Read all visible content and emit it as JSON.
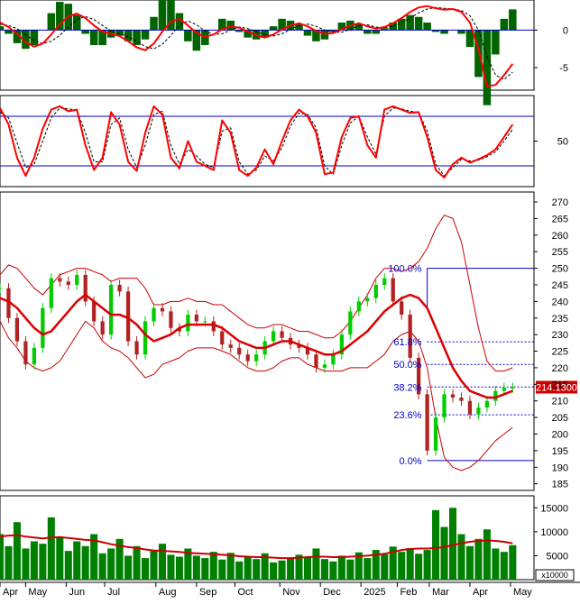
{
  "chart_data": [
    {
      "type": "line",
      "panel": "macd",
      "series": [],
      "y_ticks": [
        0,
        -5
      ],
      "ylim": [
        -8,
        4
      ],
      "histogram_color": "#006400",
      "colors": {
        "macd": "#ff0000",
        "signal": "#000000",
        "zero": "#0000cc"
      },
      "x": [
        0,
        4,
        8,
        12,
        16,
        20,
        24,
        28,
        32,
        36,
        40,
        44,
        48,
        52,
        56,
        60,
        64,
        68,
        72,
        76,
        80,
        84,
        88,
        92,
        96,
        100,
        104,
        108,
        112,
        116,
        120,
        124,
        128,
        132,
        136,
        140,
        144,
        148,
        152,
        156,
        160,
        164,
        168,
        172,
        176,
        180,
        184,
        188,
        192,
        196,
        200,
        204,
        208,
        212,
        216,
        220,
        224,
        228,
        232,
        236,
        240
      ],
      "macd": [
        1.0,
        0.4,
        -0.5,
        -1.6,
        -2.2,
        -1.8,
        -0.6,
        0.8,
        1.8,
        2.2,
        1.6,
        0.6,
        -0.2,
        -0.5,
        -0.8,
        -1.5,
        -2.3,
        -2.7,
        -1.8,
        -0.2,
        1.1,
        1.5,
        0.6,
        -0.4,
        -0.9,
        -0.6,
        0.1,
        0.5,
        0.3,
        -0.2,
        -0.7,
        -1.0,
        -0.6,
        0.1,
        0.6,
        0.9,
        0.5,
        -0.1,
        -0.5,
        -0.4,
        0.1,
        0.6,
        0.9,
        0.5,
        0.2,
        0.4,
        0.9,
        1.6,
        2.4,
        3.0,
        3.2,
        2.9,
        2.7,
        2.8,
        2.4,
        1.0,
        -2.5,
        -7.5,
        -7.3,
        -6.0,
        -4.5
      ],
      "signal": [
        0.8,
        0.6,
        0.2,
        -0.6,
        -1.4,
        -1.8,
        -1.5,
        -0.7,
        0.4,
        1.4,
        1.8,
        1.4,
        0.6,
        -0.1,
        -0.5,
        -0.9,
        -1.5,
        -2.2,
        -2.5,
        -1.9,
        -0.7,
        0.6,
        1.2,
        0.7,
        -0.1,
        -0.6,
        -0.5,
        0.0,
        0.4,
        0.2,
        -0.2,
        -0.6,
        -0.8,
        -0.5,
        0.1,
        0.6,
        0.8,
        0.5,
        0.0,
        -0.3,
        -0.3,
        0.1,
        0.6,
        0.7,
        0.4,
        0.3,
        0.5,
        1.0,
        1.6,
        2.3,
        2.8,
        3.0,
        2.9,
        2.8,
        2.6,
        1.9,
        0.0,
        -3.5,
        -6.0,
        -6.6,
        -5.6
      ]
    },
    {
      "type": "line",
      "panel": "stochastic",
      "series": [],
      "y_ticks": [
        50
      ],
      "ylim": [
        -5,
        105
      ],
      "levels": [
        80,
        20
      ],
      "colors": {
        "k": "#ff0000",
        "d": "#000000",
        "levels": "#0000cc"
      },
      "x": [
        0,
        4,
        8,
        12,
        16,
        20,
        24,
        28,
        32,
        36,
        40,
        44,
        48,
        52,
        56,
        60,
        64,
        68,
        72,
        76,
        80,
        84,
        88,
        92,
        96,
        100,
        104,
        108,
        112,
        116,
        120,
        124,
        128,
        132,
        136,
        140,
        144,
        148,
        152,
        156,
        160,
        164,
        168,
        172,
        176,
        180,
        184,
        188,
        192,
        196,
        200,
        204,
        208,
        212,
        216,
        220,
        224,
        228,
        232,
        236,
        240
      ],
      "k": [
        90,
        70,
        30,
        8,
        30,
        65,
        88,
        92,
        86,
        88,
        45,
        15,
        30,
        85,
        70,
        25,
        14,
        60,
        92,
        82,
        30,
        17,
        50,
        25,
        20,
        15,
        75,
        60,
        15,
        8,
        18,
        40,
        22,
        50,
        75,
        88,
        80,
        60,
        10,
        12,
        55,
        78,
        80,
        45,
        30,
        88,
        92,
        88,
        84,
        85,
        55,
        15,
        6,
        22,
        30,
        24,
        28,
        33,
        40,
        55,
        70
      ],
      "d": [
        85,
        78,
        48,
        18,
        22,
        50,
        78,
        90,
        89,
        87,
        60,
        25,
        25,
        70,
        78,
        40,
        18,
        45,
        82,
        86,
        45,
        22,
        40,
        32,
        22,
        18,
        62,
        66,
        25,
        10,
        15,
        32,
        26,
        42,
        68,
        84,
        82,
        66,
        20,
        10,
        45,
        72,
        80,
        55,
        34,
        80,
        90,
        89,
        86,
        85,
        62,
        22,
        8,
        18,
        28,
        26,
        27,
        31,
        37,
        50,
        64
      ]
    },
    {
      "type": "candlestick",
      "panel": "price",
      "series": [],
      "y_ticks": [
        185,
        190,
        195,
        200,
        205,
        210,
        215,
        220,
        225,
        230,
        235,
        240,
        245,
        250,
        255,
        260,
        265,
        270
      ],
      "ylim": [
        183,
        273
      ],
      "last_price_label": "214.1300",
      "colors": {
        "up": "#00cc00",
        "down": "#b22222",
        "ma": "#dd0000",
        "band": "#cc0000",
        "fib": "#0000cc"
      },
      "x": [
        0,
        4,
        8,
        12,
        16,
        20,
        24,
        28,
        32,
        36,
        40,
        44,
        48,
        52,
        56,
        60,
        64,
        68,
        72,
        76,
        80,
        84,
        88,
        92,
        96,
        100,
        104,
        108,
        112,
        116,
        120,
        124,
        128,
        132,
        136,
        140,
        144,
        148,
        152,
        156,
        160,
        164,
        168,
        172,
        176,
        180,
        184,
        188,
        192,
        196,
        200,
        204,
        208,
        212,
        216,
        220,
        224,
        228,
        232,
        236,
        240
      ],
      "close": [
        244,
        235,
        228,
        221,
        226,
        238,
        247,
        246,
        245,
        248,
        240,
        234,
        230,
        245,
        243,
        228,
        224,
        234,
        238,
        237,
        232,
        231,
        236,
        234,
        234,
        231,
        227,
        226,
        224,
        222,
        224,
        228,
        231,
        229,
        227,
        226,
        224,
        220,
        221,
        224,
        230,
        237,
        240,
        241,
        245,
        247,
        240,
        236,
        223,
        212,
        195,
        205,
        212,
        211,
        210,
        206,
        208,
        210,
        213,
        214,
        214
      ],
      "ma": [
        241,
        240,
        238,
        235,
        232,
        230,
        231,
        234,
        237,
        240,
        242,
        240,
        238,
        236,
        236,
        235,
        233,
        230,
        228,
        229,
        230,
        232,
        233,
        233,
        233,
        233,
        232,
        230,
        228,
        227,
        226,
        226,
        227,
        228,
        228,
        227,
        226,
        225,
        224,
        224,
        225,
        227,
        229,
        231,
        234,
        237,
        239,
        241,
        242,
        241,
        238,
        232,
        226,
        220,
        216,
        213,
        212,
        211,
        211,
        212,
        213
      ],
      "upper": [
        248,
        251,
        250,
        247,
        244,
        242,
        245,
        248,
        249,
        250,
        250,
        249,
        248,
        246,
        247,
        247,
        247,
        244,
        239,
        239,
        240,
        240,
        241,
        240,
        240,
        239,
        239,
        237,
        235,
        233,
        232,
        232,
        233,
        233,
        232,
        231,
        231,
        230,
        229,
        229,
        231,
        234,
        238,
        242,
        247,
        250,
        250,
        249,
        250,
        252,
        256,
        262,
        266,
        265,
        258,
        245,
        232,
        222,
        219,
        219,
        220
      ],
      "lower": [
        234,
        229,
        226,
        222,
        220,
        219,
        220,
        222,
        226,
        230,
        234,
        232,
        228,
        226,
        225,
        223,
        220,
        217,
        218,
        221,
        222,
        223,
        225,
        226,
        226,
        226,
        225,
        224,
        222,
        220,
        219,
        219,
        220,
        222,
        223,
        223,
        221,
        220,
        219,
        219,
        219,
        220,
        220,
        220,
        222,
        224,
        228,
        230,
        231,
        228,
        220,
        205,
        193,
        190,
        189,
        190,
        192,
        195,
        198,
        200,
        202
      ],
      "fib_levels": [
        {
          "label": "100.0%",
          "value": 250
        },
        {
          "label": "61.8%",
          "value": 227.8
        },
        {
          "label": "50.0%",
          "value": 221
        },
        {
          "label": "38.2%",
          "value": 214.2
        },
        {
          "label": "23.6%",
          "value": 205.8
        },
        {
          "label": "0.0%",
          "value": 192
        }
      ]
    },
    {
      "type": "bar",
      "panel": "volume",
      "series": [],
      "y_ticks": [
        5000,
        10000,
        15000
      ],
      "ylim": [
        0,
        17500
      ],
      "unit_label": "x10000",
      "colors": {
        "bar": "#008000",
        "ma": "#cc0000"
      },
      "x": [
        0,
        4,
        8,
        12,
        16,
        20,
        24,
        28,
        32,
        36,
        40,
        44,
        48,
        52,
        56,
        60,
        64,
        68,
        72,
        76,
        80,
        84,
        88,
        92,
        96,
        100,
        104,
        108,
        112,
        116,
        120,
        124,
        128,
        132,
        136,
        140,
        144,
        148,
        152,
        156,
        160,
        164,
        168,
        172,
        176,
        180,
        184,
        188,
        192,
        196,
        200,
        204,
        208,
        212,
        216,
        220,
        224,
        228,
        232,
        236,
        240
      ],
      "volume": [
        9500,
        7000,
        12000,
        6500,
        8000,
        7500,
        13000,
        9000,
        6000,
        8000,
        7000,
        9500,
        5500,
        6500,
        8500,
        5000,
        7000,
        4500,
        6000,
        7500,
        5200,
        4800,
        6500,
        5000,
        4500,
        5800,
        4200,
        5600,
        3800,
        4700,
        4300,
        5500,
        3600,
        4000,
        4400,
        5200,
        4800,
        6500,
        4300,
        3800,
        5000,
        4200,
        5700,
        4500,
        6200,
        5300,
        6900,
        5800,
        6600,
        5400,
        6200,
        14500,
        11000,
        15000,
        9500,
        7000,
        8500,
        10500,
        6500,
        5800,
        7200
      ],
      "volume_ma": [
        9000,
        9200,
        9300,
        9000,
        8800,
        8600,
        8800,
        8900,
        8700,
        8500,
        8300,
        8200,
        7800,
        7400,
        7100,
        6800,
        6600,
        6300,
        6100,
        6000,
        5900,
        5800,
        5600,
        5500,
        5400,
        5300,
        5200,
        5100,
        4900,
        4800,
        4700,
        4700,
        4600,
        4500,
        4500,
        4600,
        4700,
        4800,
        4800,
        4700,
        4700,
        4800,
        4900,
        5000,
        5200,
        5400,
        5800,
        6200,
        6400,
        6500,
        6500,
        6600,
        6800,
        7200,
        7600,
        7900,
        8100,
        8200,
        8100,
        7900,
        7600
      ]
    }
  ],
  "x_axis": {
    "month_labels": [
      {
        "label": "Apr",
        "x": 0
      },
      {
        "label": "May",
        "x": 12
      },
      {
        "label": "Jun",
        "x": 31
      },
      {
        "label": "Jul",
        "x": 49
      },
      {
        "label": "Aug",
        "x": 73
      },
      {
        "label": "Sep",
        "x": 92
      },
      {
        "label": "Oct",
        "x": 110
      },
      {
        "label": "Nov",
        "x": 131
      },
      {
        "label": "Dec",
        "x": 150
      },
      {
        "label": "2025",
        "x": 169
      },
      {
        "label": "Feb",
        "x": 186
      },
      {
        "label": "Mar",
        "x": 201
      },
      {
        "label": "Apr",
        "x": 220
      },
      {
        "label": "May",
        "x": 239
      }
    ],
    "xlim": [
      0,
      250
    ]
  }
}
